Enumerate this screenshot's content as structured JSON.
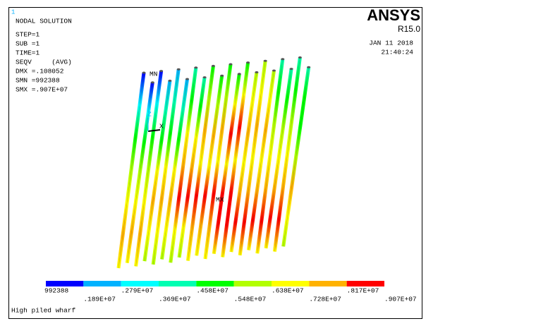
{
  "window_number": "1",
  "header": {
    "lines": [
      "NODAL SOLUTION",
      "STEP=1",
      "SUB =1",
      "TIME=1",
      "SEQV     (AVG)",
      "DMX =.108052",
      "SMN =992388",
      "SMX =.907E+07"
    ]
  },
  "logo": {
    "title": "ANSYS",
    "version": "R15.0",
    "date": "JAN 11 2018",
    "time": "21:40:24"
  },
  "plot": {
    "min_label": "MN",
    "max_label": "MX",
    "axes": [
      "Z",
      "X"
    ]
  },
  "legend": {
    "colors": [
      "#0000ff",
      "#00b2ff",
      "#00ffff",
      "#00ffb2",
      "#00ff00",
      "#b2ff00",
      "#ffff00",
      "#ffb200",
      "#ff0000"
    ],
    "labels": [
      "992388",
      ".189E+07",
      ".279E+07",
      ".369E+07",
      ".458E+07",
      ".548E+07",
      ".638E+07",
      ".728E+07",
      ".817E+07",
      ".907E+07"
    ]
  },
  "footer": "High piled wharf"
}
